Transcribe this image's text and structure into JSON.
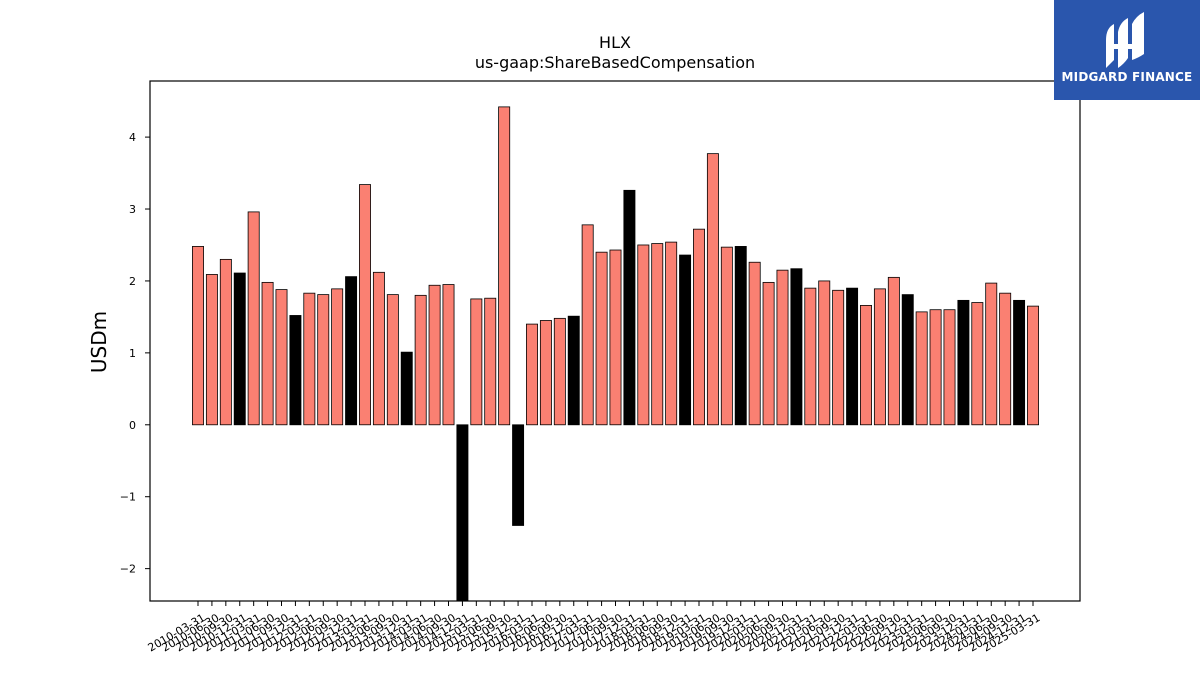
{
  "brand": {
    "name": "MIDGARD FINANCE",
    "logo_icon": "midgard-m-icon",
    "color": "#2a56ad"
  },
  "chart_data": {
    "type": "bar",
    "title": "HLX",
    "subtitle": "us-gaap:ShareBasedCompensation",
    "ylabel": "USDm",
    "ylim": [
      -2.45,
      4.78
    ],
    "yticks": [
      -2,
      -1,
      0,
      1,
      2,
      3,
      4
    ],
    "grid": false,
    "colors": {
      "quarter": "#fa8072",
      "fourth_quarter": "#000000"
    },
    "x": [
      "2010-03-31",
      "2010-06-30",
      "2010-09-30",
      "2010-12-31",
      "2011-03-31",
      "2011-06-30",
      "2011-09-30",
      "2011-12-31",
      "2012-03-31",
      "2012-06-30",
      "2012-09-30",
      "2012-12-31",
      "2013-03-31",
      "2013-06-30",
      "2013-09-30",
      "2013-12-31",
      "2014-03-31",
      "2014-06-30",
      "2014-09-30",
      "2014-12-31",
      "2015-03-31",
      "2015-06-30",
      "2015-09-30",
      "2015-12-31",
      "2016-03-31",
      "2016-06-30",
      "2016-09-30",
      "2016-12-31",
      "2017-03-31",
      "2017-06-30",
      "2017-09-30",
      "2017-12-31",
      "2018-03-31",
      "2018-06-30",
      "2018-09-30",
      "2018-12-31",
      "2019-03-31",
      "2019-06-30",
      "2019-09-30",
      "2019-12-31",
      "2020-03-31",
      "2020-06-30",
      "2020-09-30",
      "2020-12-31",
      "2021-03-31",
      "2021-06-30",
      "2021-09-30",
      "2021-12-31",
      "2022-03-31",
      "2022-06-30",
      "2022-09-30",
      "2022-12-31",
      "2023-03-31",
      "2023-06-30",
      "2023-09-30",
      "2023-12-31",
      "2024-03-31",
      "2024-06-30",
      "2024-09-30",
      "2024-12-31",
      "2025-03-31"
    ],
    "series": [
      {
        "values": [
          2.48,
          2.09,
          2.3,
          2.11,
          2.96,
          1.98,
          1.88,
          1.52,
          1.83,
          1.81,
          1.89,
          2.06,
          3.34,
          2.12,
          1.81,
          1.01,
          1.8,
          1.94,
          1.95,
          -2.5,
          1.75,
          1.76,
          4.42,
          -1.4,
          1.4,
          1.45,
          1.48,
          1.51,
          2.78,
          2.4,
          2.43,
          3.26,
          2.5,
          2.52,
          2.54,
          2.36,
          2.72,
          3.77,
          2.47,
          2.48,
          2.26,
          1.98,
          2.15,
          2.17,
          1.9,
          2.0,
          1.87,
          1.9,
          1.66,
          1.89,
          2.05,
          1.81,
          1.57,
          1.6,
          1.6,
          1.73,
          1.7,
          1.97,
          1.83,
          1.73,
          1.65
        ]
      }
    ]
  }
}
